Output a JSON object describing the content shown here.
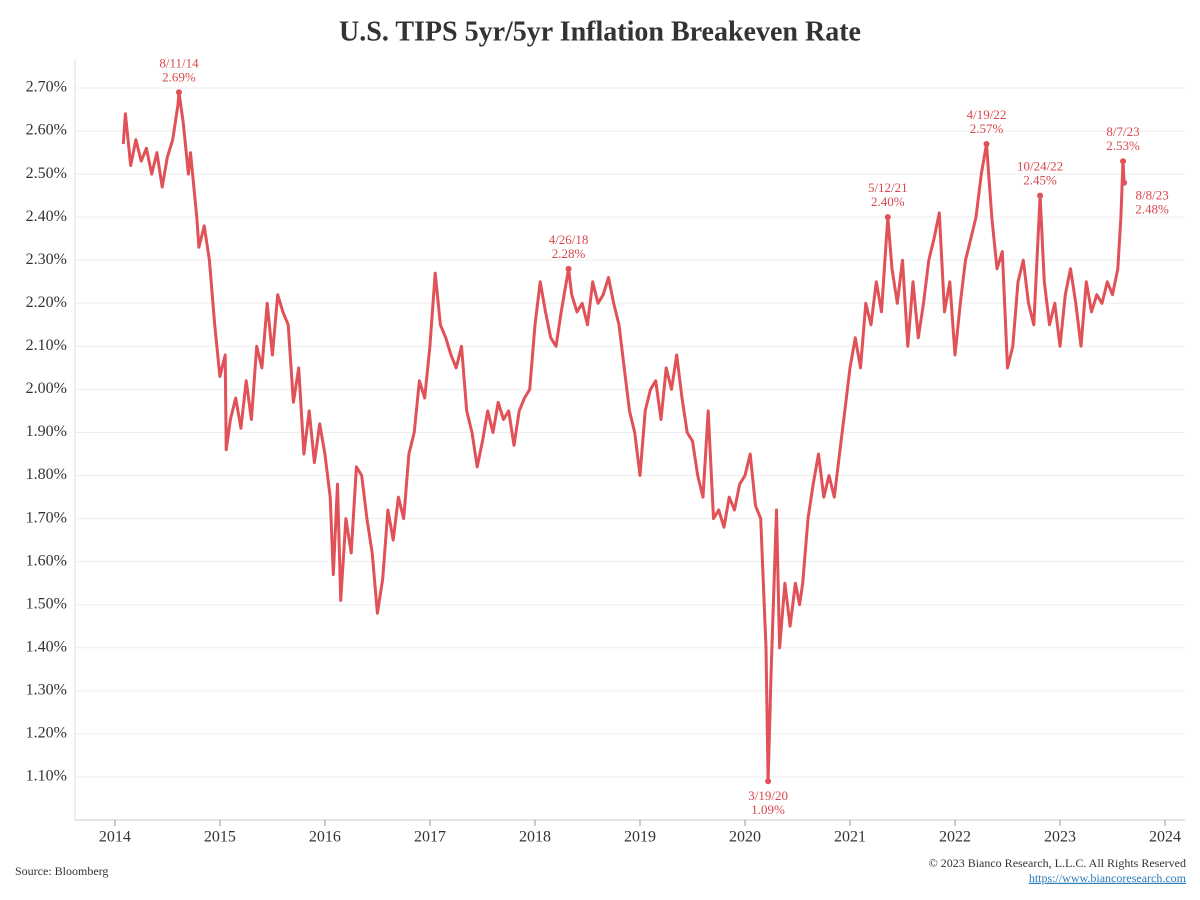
{
  "chart_data": {
    "type": "line",
    "title": "U.S. TIPS 5yr/5yr Inflation Breakeven Rate",
    "color": "#e05257",
    "grid": true,
    "xlim": [
      2013.62,
      2024.19
    ],
    "xticks": [
      2014,
      2015,
      2016,
      2017,
      2018,
      2019,
      2020,
      2021,
      2022,
      2023,
      2024
    ],
    "ylim": [
      1.0,
      2.765
    ],
    "yticks": [
      {
        "value": 1.1,
        "label": "1.10%"
      },
      {
        "value": 1.2,
        "label": "1.20%"
      },
      {
        "value": 1.3,
        "label": "1.30%"
      },
      {
        "value": 1.4,
        "label": "1.40%"
      },
      {
        "value": 1.5,
        "label": "1.50%"
      },
      {
        "value": 1.6,
        "label": "1.60%"
      },
      {
        "value": 1.7,
        "label": "1.70%"
      },
      {
        "value": 1.8,
        "label": "1.80%"
      },
      {
        "value": 1.9,
        "label": "1.90%"
      },
      {
        "value": 2.0,
        "label": "2.00%"
      },
      {
        "value": 2.1,
        "label": "2.10%"
      },
      {
        "value": 2.2,
        "label": "2.20%"
      },
      {
        "value": 2.3,
        "label": "2.30%"
      },
      {
        "value": 2.4,
        "label": "2.40%"
      },
      {
        "value": 2.5,
        "label": "2.50%"
      },
      {
        "value": 2.6,
        "label": "2.60%"
      },
      {
        "value": 2.7,
        "label": "2.70%"
      }
    ],
    "x": [
      2014.08,
      2014.1,
      2014.15,
      2014.2,
      2014.25,
      2014.3,
      2014.35,
      2014.4,
      2014.45,
      2014.5,
      2014.55,
      2014.6,
      2014.61,
      2014.65,
      2014.7,
      2014.72,
      2014.78,
      2014.8,
      2014.85,
      2014.9,
      2014.95,
      2015.0,
      2015.05,
      2015.06,
      2015.1,
      2015.15,
      2015.2,
      2015.25,
      2015.3,
      2015.35,
      2015.4,
      2015.45,
      2015.5,
      2015.55,
      2015.6,
      2015.65,
      2015.7,
      2015.75,
      2015.8,
      2015.85,
      2015.9,
      2015.95,
      2016.0,
      2016.05,
      2016.08,
      2016.12,
      2016.15,
      2016.2,
      2016.25,
      2016.3,
      2016.35,
      2016.4,
      2016.45,
      2016.5,
      2016.55,
      2016.6,
      2016.65,
      2016.7,
      2016.75,
      2016.8,
      2016.85,
      2016.9,
      2016.95,
      2017.0,
      2017.05,
      2017.1,
      2017.15,
      2017.2,
      2017.25,
      2017.3,
      2017.35,
      2017.4,
      2017.45,
      2017.5,
      2017.55,
      2017.6,
      2017.65,
      2017.7,
      2017.75,
      2017.8,
      2017.85,
      2017.9,
      2017.95,
      2018.0,
      2018.05,
      2018.1,
      2018.15,
      2018.2,
      2018.25,
      2018.32,
      2018.35,
      2018.4,
      2018.45,
      2018.5,
      2018.55,
      2018.6,
      2018.65,
      2018.7,
      2018.75,
      2018.8,
      2018.85,
      2018.9,
      2018.95,
      2019.0,
      2019.05,
      2019.1,
      2019.15,
      2019.2,
      2019.25,
      2019.3,
      2019.35,
      2019.4,
      2019.45,
      2019.5,
      2019.55,
      2019.6,
      2019.65,
      2019.7,
      2019.75,
      2019.8,
      2019.85,
      2019.9,
      2019.95,
      2020.0,
      2020.05,
      2020.1,
      2020.15,
      2020.2,
      2020.22,
      2020.25,
      2020.3,
      2020.33,
      2020.38,
      2020.43,
      2020.48,
      2020.52,
      2020.55,
      2020.6,
      2020.65,
      2020.7,
      2020.75,
      2020.8,
      2020.85,
      2020.9,
      2020.95,
      2021.0,
      2021.05,
      2021.1,
      2021.15,
      2021.2,
      2021.25,
      2021.3,
      2021.36,
      2021.4,
      2021.45,
      2021.5,
      2021.55,
      2021.6,
      2021.65,
      2021.7,
      2021.75,
      2021.8,
      2021.85,
      2021.9,
      2021.95,
      2022.0,
      2022.05,
      2022.1,
      2022.15,
      2022.2,
      2022.25,
      2022.3,
      2022.35,
      2022.4,
      2022.45,
      2022.5,
      2022.55,
      2022.6,
      2022.65,
      2022.7,
      2022.75,
      2022.81,
      2022.85,
      2022.9,
      2022.95,
      2023.0,
      2023.05,
      2023.1,
      2023.15,
      2023.2,
      2023.25,
      2023.3,
      2023.35,
      2023.4,
      2023.45,
      2023.5,
      2023.55,
      2023.58,
      2023.6,
      2023.61
    ],
    "values": [
      2.57,
      2.64,
      2.52,
      2.58,
      2.53,
      2.56,
      2.5,
      2.55,
      2.47,
      2.54,
      2.58,
      2.66,
      2.69,
      2.62,
      2.5,
      2.55,
      2.4,
      2.33,
      2.38,
      2.3,
      2.15,
      2.03,
      2.08,
      1.86,
      1.93,
      1.98,
      1.91,
      2.02,
      1.93,
      2.1,
      2.05,
      2.2,
      2.08,
      2.22,
      2.18,
      2.15,
      1.97,
      2.05,
      1.85,
      1.95,
      1.83,
      1.92,
      1.85,
      1.75,
      1.57,
      1.78,
      1.51,
      1.7,
      1.62,
      1.82,
      1.8,
      1.7,
      1.62,
      1.48,
      1.56,
      1.72,
      1.65,
      1.75,
      1.7,
      1.85,
      1.9,
      2.02,
      1.98,
      2.1,
      2.27,
      2.15,
      2.12,
      2.08,
      2.05,
      2.1,
      1.95,
      1.9,
      1.82,
      1.88,
      1.95,
      1.9,
      1.97,
      1.93,
      1.95,
      1.87,
      1.95,
      1.98,
      2.0,
      2.15,
      2.25,
      2.18,
      2.12,
      2.1,
      2.18,
      2.28,
      2.22,
      2.18,
      2.2,
      2.15,
      2.25,
      2.2,
      2.22,
      2.26,
      2.2,
      2.15,
      2.05,
      1.95,
      1.9,
      1.8,
      1.95,
      2.0,
      2.02,
      1.93,
      2.05,
      2.0,
      2.08,
      1.98,
      1.9,
      1.88,
      1.8,
      1.75,
      1.95,
      1.7,
      1.72,
      1.68,
      1.75,
      1.72,
      1.78,
      1.8,
      1.85,
      1.73,
      1.7,
      1.4,
      1.09,
      1.35,
      1.72,
      1.4,
      1.55,
      1.45,
      1.55,
      1.5,
      1.55,
      1.7,
      1.78,
      1.85,
      1.75,
      1.8,
      1.75,
      1.85,
      1.95,
      2.05,
      2.12,
      2.05,
      2.2,
      2.15,
      2.25,
      2.18,
      2.4,
      2.28,
      2.2,
      2.3,
      2.1,
      2.25,
      2.12,
      2.2,
      2.3,
      2.35,
      2.41,
      2.18,
      2.25,
      2.08,
      2.2,
      2.3,
      2.35,
      2.4,
      2.5,
      2.57,
      2.4,
      2.28,
      2.32,
      2.05,
      2.1,
      2.25,
      2.3,
      2.2,
      2.15,
      2.45,
      2.25,
      2.15,
      2.2,
      2.1,
      2.22,
      2.28,
      2.2,
      2.1,
      2.25,
      2.18,
      2.22,
      2.2,
      2.25,
      2.22,
      2.28,
      2.4,
      2.53,
      2.48
    ],
    "annotations": [
      {
        "x": 2014.61,
        "value": 2.69,
        "date": "8/11/14",
        "label": "2.69%"
      },
      {
        "x": 2018.32,
        "value": 2.28,
        "date": "4/26/18",
        "label": "2.28%"
      },
      {
        "x": 2020.22,
        "value": 1.09,
        "date": "3/19/20",
        "label": "1.09%"
      },
      {
        "x": 2021.36,
        "value": 2.4,
        "date": "5/12/21",
        "label": "2.40%"
      },
      {
        "x": 2022.3,
        "value": 2.57,
        "date": "4/19/22",
        "label": "2.57%"
      },
      {
        "x": 2022.81,
        "value": 2.45,
        "date": "10/24/22",
        "label": "2.45%"
      },
      {
        "x": 2023.6,
        "value": 2.53,
        "date": "8/7/23",
        "label": "2.53%"
      },
      {
        "x": 2023.61,
        "value": 2.48,
        "date": "8/8/23",
        "label": "2.48%"
      }
    ],
    "source": "Source: Bloomberg",
    "copyright": "© 2023 Bianco Research, L.L.C. All Rights Reserved",
    "url": "https://www.biancoresearch.com"
  }
}
